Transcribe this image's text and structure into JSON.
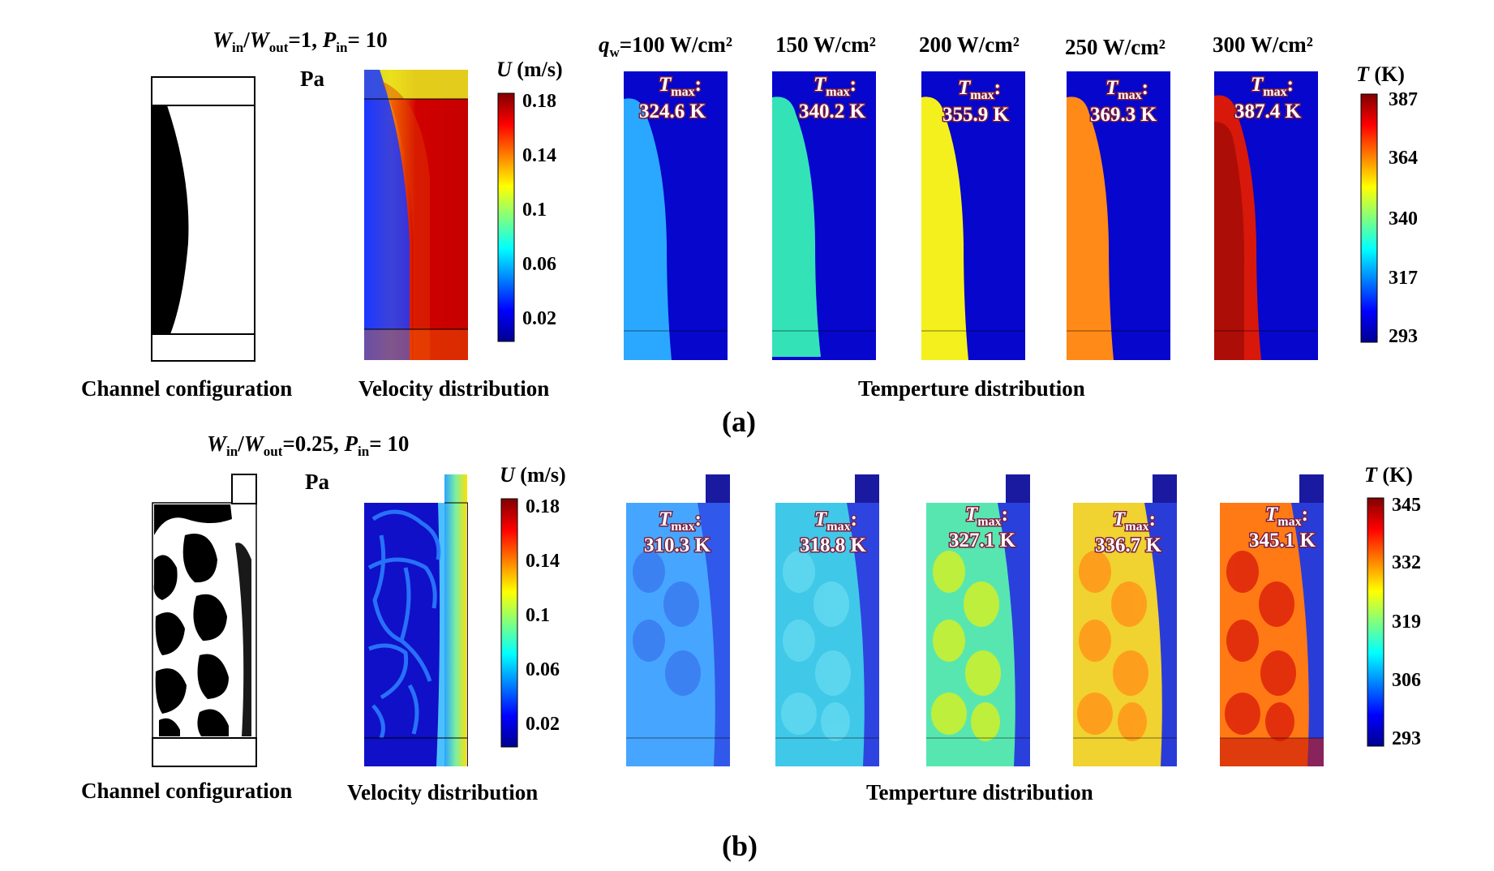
{
  "figure": {
    "panels": [
      {
        "id": "a",
        "caption": "(a)",
        "condition": "W_in/W_out=1, P_in= 10 Pa",
        "condition_ratio": "1",
        "condition_pressure": "10",
        "condition_unit": "Pa",
        "channel_label": "Channel configuration",
        "velocity_label": "Velocity distribution",
        "temperature_label": "Temperture distribution",
        "velocity_bar": {
          "title": "U (m/s)",
          "ticks": [
            "0.18",
            "0.14",
            "0.1",
            "0.06",
            "0.02"
          ],
          "min": 0.0,
          "max": 0.2
        },
        "temperature_bar": {
          "title": "T (K)",
          "ticks": [
            "387",
            "364",
            "340",
            "317",
            "293"
          ],
          "min": 293,
          "max": 387
        },
        "cases": [
          {
            "heat_flux": "100 W/cm²",
            "tmax": "324.6 K"
          },
          {
            "heat_flux": "150 W/cm²",
            "tmax": "340.2 K"
          },
          {
            "heat_flux": "200 W/cm²",
            "tmax": "355.9 K"
          },
          {
            "heat_flux": "250 W/cm²",
            "tmax": "369.3 K"
          },
          {
            "heat_flux": "300 W/cm²",
            "tmax": "387.4 K"
          }
        ]
      },
      {
        "id": "b",
        "caption": "(b)",
        "condition": "W_in/W_out=0.25, P_in= 10 Pa",
        "condition_ratio": "0.25",
        "condition_pressure": "10",
        "condition_unit": "Pa",
        "channel_label": "Channel configuration",
        "velocity_label": "Velocity distribution",
        "temperature_label": "Temperture distribution",
        "velocity_bar": {
          "title": "U (m/s)",
          "ticks": [
            "0.18",
            "0.14",
            "0.1",
            "0.06",
            "0.02"
          ],
          "min": 0.0,
          "max": 0.2
        },
        "temperature_bar": {
          "title": "T (K)",
          "ticks": [
            "345",
            "332",
            "319",
            "306",
            "293"
          ],
          "min": 293,
          "max": 345
        },
        "cases": [
          {
            "heat_flux": "100 W/cm²",
            "tmax": "310.3 K"
          },
          {
            "heat_flux": "150 W/cm²",
            "tmax": "318.8 K"
          },
          {
            "heat_flux": "200 W/cm²",
            "tmax": "327.1 K"
          },
          {
            "heat_flux": "250 W/cm²",
            "tmax": "336.7 K"
          },
          {
            "heat_flux": "300 W/cm²",
            "tmax": "345.1 K"
          }
        ]
      }
    ],
    "heat_flux_symbol": "q",
    "heat_flux_subscript": "w",
    "tmax_symbol": "T",
    "tmax_subscript": "max",
    "colors": {
      "jet_dark_blue": "#00008f",
      "jet_blue": "#0000ff",
      "jet_cyan": "#00ffff",
      "jet_yellow": "#ffff00",
      "jet_red": "#ff0000",
      "jet_dark_red": "#800000",
      "tmax_label_outline": "#7a1f3d"
    }
  }
}
